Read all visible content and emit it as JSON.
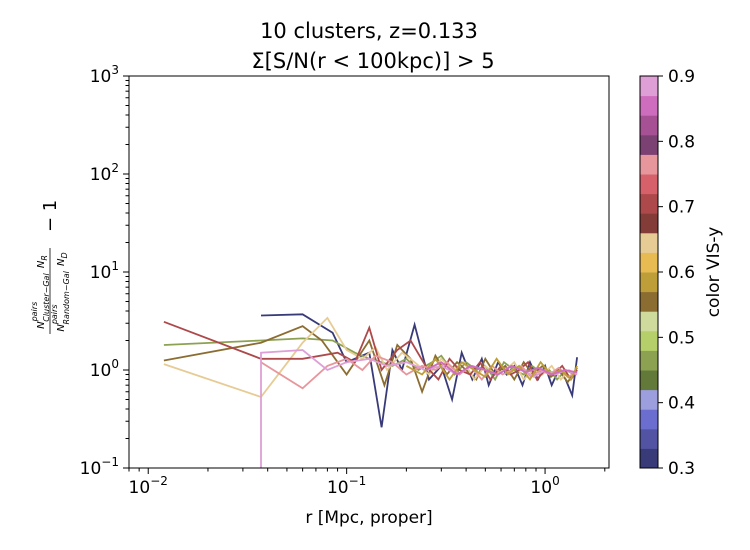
{
  "chart_data": {
    "type": "line",
    "title_line1": "10 clusters, z=0.133",
    "title_line2": "Σ[S/N(r < 100kpc)] > 5",
    "xlabel": "r [Mpc, proper]",
    "ylabel": "N^pairs_Cluster−Gal N_R / (N^pairs_Random−Gal N_D) − 1",
    "xscale": "log",
    "yscale": "log",
    "xlim": [
      0.008,
      2.1
    ],
    "ylim": [
      0.1,
      1000
    ],
    "x_ticks": [
      {
        "value": 0.01,
        "base": "10",
        "exp": "−2"
      },
      {
        "value": 0.1,
        "base": "10",
        "exp": "−1"
      },
      {
        "value": 1,
        "base": "10",
        "exp": "0"
      }
    ],
    "y_ticks": [
      {
        "value": 0.1,
        "base": "10",
        "exp": "−1"
      },
      {
        "value": 1,
        "base": "10",
        "exp": "0"
      },
      {
        "value": 10,
        "base": "10",
        "exp": "1"
      },
      {
        "value": 100,
        "base": "10",
        "exp": "2"
      },
      {
        "value": 1000,
        "base": "10",
        "exp": "3"
      }
    ],
    "grid": false,
    "colorbar": {
      "label": "color VIS-y",
      "min": 0.3,
      "max": 0.9,
      "ticks": [
        "0.3",
        "0.4",
        "0.5",
        "0.6",
        "0.7",
        "0.8",
        "0.9"
      ],
      "colors": [
        "#393b79",
        "#5254a3",
        "#6b6ecf",
        "#9c9ede",
        "#637939",
        "#8ca252",
        "#b5cf6b",
        "#cedb9c",
        "#8c6d31",
        "#bd9e39",
        "#e7ba52",
        "#e7cb94",
        "#843c39",
        "#ad494a",
        "#d6616b",
        "#e7969c",
        "#7b4173",
        "#a55194",
        "#ce6dbd",
        "#de9ed6"
      ]
    },
    "series": [
      {
        "color": "#393b79",
        "x": [
          0.037,
          0.06,
          0.085,
          0.1,
          0.13,
          0.15,
          0.17,
          0.19,
          0.22,
          0.26,
          0.3,
          0.34,
          0.38,
          0.43,
          0.48,
          0.52,
          0.58,
          0.64,
          0.7,
          0.77,
          0.84,
          0.92,
          1.0,
          1.08,
          1.17,
          1.27,
          1.37,
          1.45
        ],
        "y": [
          3.6,
          3.7,
          2.4,
          1.2,
          1.5,
          0.26,
          1.6,
          1.0,
          2.9,
          0.8,
          1.1,
          0.5,
          1.5,
          0.8,
          1.3,
          0.7,
          1.2,
          0.9,
          1.1,
          0.7,
          1.2,
          0.8,
          1.1,
          0.7,
          1.0,
          0.8,
          0.55,
          1.35
        ]
      },
      {
        "color": "#8ca252",
        "x": [
          0.012,
          0.037,
          0.06,
          0.085,
          0.11,
          0.13,
          0.15,
          0.17,
          0.2,
          0.23,
          0.27,
          0.3,
          0.35,
          0.4,
          0.45,
          0.5,
          0.56,
          0.62,
          0.7,
          0.78,
          0.86,
          0.95,
          1.05,
          1.15,
          1.27,
          1.4
        ],
        "y": [
          1.8,
          2.0,
          2.1,
          2.0,
          1.5,
          1.3,
          1.2,
          1.1,
          1.3,
          1.0,
          1.2,
          1.4,
          0.9,
          1.2,
          1.0,
          1.1,
          0.8,
          1.2,
          1.0,
          0.9,
          1.1,
          0.95,
          1.0,
          0.8,
          1.0,
          0.9
        ]
      },
      {
        "color": "#8c6d31",
        "x": [
          0.012,
          0.037,
          0.06,
          0.075,
          0.1,
          0.13,
          0.155,
          0.18,
          0.21,
          0.24,
          0.28,
          0.32,
          0.36,
          0.4,
          0.45,
          0.5,
          0.56,
          0.63,
          0.7,
          0.78,
          0.87,
          0.97,
          1.07,
          1.18,
          1.3,
          1.45
        ],
        "y": [
          1.25,
          1.9,
          2.8,
          2.0,
          0.9,
          2.0,
          0.7,
          1.8,
          1.3,
          0.6,
          1.4,
          0.9,
          1.2,
          1.0,
          0.8,
          1.3,
          0.9,
          1.1,
          0.8,
          1.2,
          0.9,
          1.1,
          0.85,
          1.0,
          0.75,
          1.05
        ]
      },
      {
        "color": "#e7cb94",
        "x": [
          0.012,
          0.037,
          0.06,
          0.08,
          0.1,
          0.12,
          0.14,
          0.16,
          0.19,
          0.22,
          0.26,
          0.3,
          0.34,
          0.39,
          0.44,
          0.5,
          0.56,
          0.63,
          0.7,
          0.78,
          0.87,
          0.97,
          1.08,
          1.2,
          1.32,
          1.45
        ],
        "y": [
          1.15,
          0.53,
          1.9,
          3.4,
          1.6,
          1.3,
          1.7,
          1.0,
          1.5,
          1.2,
          0.9,
          1.3,
          1.0,
          1.2,
          0.8,
          1.1,
          0.9,
          1.0,
          1.2,
          0.8,
          1.0,
          0.9,
          1.1,
          0.8,
          1.0,
          0.9
        ]
      },
      {
        "color": "#ad494a",
        "x": [
          0.012,
          0.037,
          0.06,
          0.09,
          0.11,
          0.13,
          0.15,
          0.18,
          0.21,
          0.25,
          0.29,
          0.33,
          0.37,
          0.42,
          0.47,
          0.53,
          0.6,
          0.67,
          0.74,
          0.82,
          0.91,
          1.0,
          1.1,
          1.22,
          1.35,
          1.45
        ],
        "y": [
          3.1,
          1.3,
          1.3,
          1.5,
          1.2,
          2.7,
          1.0,
          1.6,
          2.0,
          1.1,
          0.8,
          1.3,
          1.0,
          0.9,
          1.2,
          0.8,
          1.1,
          0.9,
          1.0,
          1.2,
          0.8,
          1.0,
          0.9,
          1.1,
          0.8,
          1.0
        ]
      },
      {
        "color": "#e7969c",
        "x": [
          0.037,
          0.06,
          0.08,
          0.1,
          0.12,
          0.14,
          0.17,
          0.2,
          0.24,
          0.28,
          0.32,
          0.37,
          0.42,
          0.48,
          0.54,
          0.61,
          0.68,
          0.76,
          0.85,
          0.95,
          1.05,
          1.17,
          1.3,
          1.45
        ],
        "y": [
          1.2,
          0.65,
          1.1,
          1.3,
          1.0,
          1.4,
          1.2,
          0.9,
          1.1,
          1.0,
          1.2,
          0.9,
          1.1,
          0.8,
          1.1,
          0.9,
          1.0,
          1.1,
          0.85,
          1.0,
          0.9,
          1.05,
          0.85,
          0.95
        ]
      },
      {
        "color": "#de9ed6",
        "x": [
          0.037,
          0.037,
          0.06,
          0.08,
          0.1,
          0.13,
          0.16,
          0.2,
          0.25,
          0.3,
          0.36,
          0.43,
          0.5,
          0.58,
          0.67,
          0.77,
          0.88,
          1.0,
          1.13,
          1.27,
          1.45
        ],
        "y": [
          0.1,
          1.5,
          1.6,
          1.0,
          1.2,
          1.3,
          1.1,
          1.2,
          1.0,
          1.1,
          0.9,
          1.1,
          1.0,
          0.9,
          1.1,
          1.0,
          0.85,
          1.0,
          0.9,
          1.0,
          0.9
        ]
      },
      {
        "color": "#bd9e39",
        "x": [
          0.2,
          0.24,
          0.28,
          0.33,
          0.38,
          0.44,
          0.5,
          0.57,
          0.65,
          0.74,
          0.84,
          0.95,
          1.07,
          1.2,
          1.35,
          1.45
        ],
        "y": [
          1.1,
          0.9,
          1.3,
          0.8,
          1.2,
          1.0,
          0.85,
          1.3,
          0.9,
          1.1,
          0.8,
          1.2,
          0.9,
          1.0,
          0.8,
          1.1
        ]
      },
      {
        "color": "#ce6dbd",
        "x": [
          0.25,
          0.3,
          0.36,
          0.42,
          0.5,
          0.58,
          0.68,
          0.8,
          0.93,
          1.08,
          1.25,
          1.45
        ],
        "y": [
          1.0,
          1.2,
          0.9,
          1.1,
          1.0,
          0.9,
          1.1,
          0.95,
          1.05,
          0.9,
          1.0,
          0.95
        ]
      }
    ]
  }
}
